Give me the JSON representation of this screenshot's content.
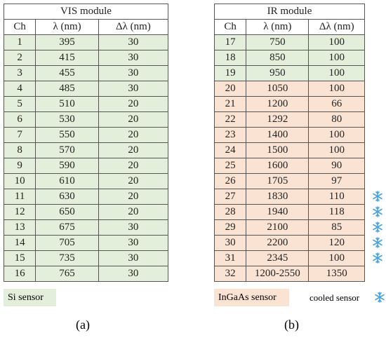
{
  "vis": {
    "title": "VIS module",
    "header": [
      "Ch",
      "λ (nm)",
      "Δλ (nm)"
    ],
    "rows": [
      [
        1,
        395,
        30
      ],
      [
        2,
        415,
        30
      ],
      [
        3,
        455,
        30
      ],
      [
        4,
        485,
        30
      ],
      [
        5,
        510,
        20
      ],
      [
        6,
        530,
        20
      ],
      [
        7,
        550,
        20
      ],
      [
        8,
        570,
        20
      ],
      [
        9,
        590,
        20
      ],
      [
        10,
        610,
        20
      ],
      [
        11,
        630,
        20
      ],
      [
        12,
        650,
        20
      ],
      [
        13,
        675,
        30
      ],
      [
        14,
        705,
        30
      ],
      [
        15,
        735,
        30
      ],
      [
        16,
        765,
        30
      ]
    ]
  },
  "ir": {
    "title": "IR module",
    "header": [
      "Ch",
      "λ (nm)",
      "Δλ (nm)"
    ],
    "rows": [
      [
        17,
        750,
        100
      ],
      [
        18,
        850,
        100
      ],
      [
        19,
        950,
        100
      ],
      [
        20,
        1050,
        100
      ],
      [
        21,
        1200,
        66
      ],
      [
        22,
        1292,
        80
      ],
      [
        23,
        1400,
        100
      ],
      [
        24,
        1500,
        100
      ],
      [
        25,
        1600,
        90
      ],
      [
        26,
        1705,
        97
      ],
      [
        27,
        1830,
        110
      ],
      [
        28,
        1940,
        118
      ],
      [
        29,
        2100,
        85
      ],
      [
        30,
        2200,
        120
      ],
      [
        31,
        2345,
        100
      ],
      [
        32,
        "1200-2550",
        1350
      ]
    ]
  },
  "legend": {
    "si": "Si sensor",
    "ingaas": "InGaAs sensor",
    "cooled": "cooled sensor"
  },
  "captions": [
    "(a)",
    "(b)"
  ]
}
